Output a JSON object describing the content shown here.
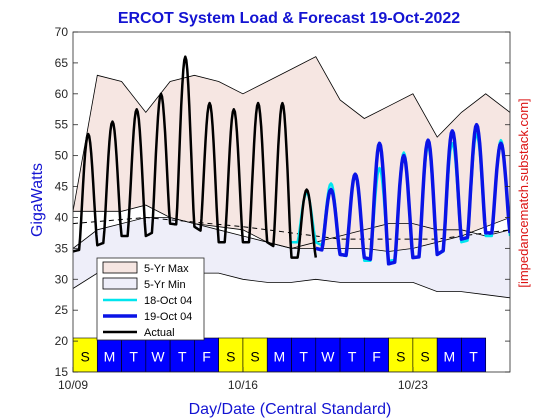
{
  "chart_data": {
    "type": "line",
    "title": "ERCOT System Load & Forecast 19-Oct-2022",
    "xlabel": "Day/Date (Central Standard)",
    "ylabel": "GigaWatts",
    "watermark": "[impedancematch.substack.com]",
    "xlim": [
      "2022-10-09 00:00",
      "2022-10-27 00:00"
    ],
    "ylim": [
      15,
      70
    ],
    "yticks": [
      15,
      20,
      25,
      30,
      35,
      40,
      45,
      50,
      55,
      60,
      65,
      70
    ],
    "xticks": [
      {
        "date": "2022-10-09",
        "label": "10/09"
      },
      {
        "date": "2022-10-16",
        "label": "10/16"
      },
      {
        "date": "2022-10-23",
        "label": "10/23"
      }
    ],
    "grid": false,
    "legend_position": "lower-left",
    "legend": [
      "5-Yr Max",
      "5-Yr Min",
      "18-Oct 04",
      "19-Oct 04",
      "Actual"
    ],
    "colors": {
      "title": "#1414d2",
      "max_band": "#f6e6e2",
      "min_band": "#eeeef9",
      "forecast_18": "#00e5ee",
      "forecast_19": "#0a14e6",
      "actual": "#000000",
      "watermark": "#dc1414",
      "weekend": "#ffff00",
      "weekday": "#0000ff"
    },
    "day_strip": {
      "start_date": "2022-10-09",
      "days": [
        "S",
        "M",
        "T",
        "W",
        "T",
        "F",
        "S",
        "S",
        "M",
        "T",
        "W",
        "T",
        "F",
        "S",
        "S",
        "M",
        "T"
      ],
      "weekend": [
        true,
        false,
        false,
        false,
        false,
        false,
        true,
        true,
        false,
        false,
        false,
        false,
        false,
        true,
        true,
        false,
        false
      ]
    },
    "series": [
      {
        "name": "5-Yr Max",
        "x": [
          "2022-10-09",
          "2022-10-10",
          "2022-10-11",
          "2022-10-12",
          "2022-10-13",
          "2022-10-14",
          "2022-10-15",
          "2022-10-16",
          "2022-10-17",
          "2022-10-18",
          "2022-10-19",
          "2022-10-20",
          "2022-10-21",
          "2022-10-22",
          "2022-10-23",
          "2022-10-24",
          "2022-10-25",
          "2022-10-26",
          "2022-10-27"
        ],
        "values": [
          41,
          63,
          62,
          57,
          62,
          63,
          62,
          60,
          62,
          64,
          66,
          59,
          56,
          58,
          60,
          53,
          57,
          60,
          57
        ]
      },
      {
        "name": "5-Yr Min",
        "x": [
          "2022-10-09",
          "2022-10-10",
          "2022-10-11",
          "2022-10-12",
          "2022-10-13",
          "2022-10-14",
          "2022-10-15",
          "2022-10-16",
          "2022-10-17",
          "2022-10-18",
          "2022-10-19",
          "2022-10-20",
          "2022-10-21",
          "2022-10-22",
          "2022-10-23",
          "2022-10-24",
          "2022-10-25",
          "2022-10-26",
          "2022-10-27"
        ],
        "values": [
          28.5,
          31,
          31.5,
          31,
          31,
          31,
          31,
          30,
          29.5,
          29.5,
          30,
          29.5,
          29.5,
          29.5,
          29.5,
          28,
          28,
          27.5,
          27
        ]
      },
      {
        "name": "5-Yr Max (lower trace)",
        "x": [
          "2022-10-09",
          "2022-10-10",
          "2022-10-11",
          "2022-10-12",
          "2022-10-13",
          "2022-10-14",
          "2022-10-15",
          "2022-10-16",
          "2022-10-17",
          "2022-10-18",
          "2022-10-19",
          "2022-10-20",
          "2022-10-21",
          "2022-10-22",
          "2022-10-23",
          "2022-10-24",
          "2022-10-25",
          "2022-10-26",
          "2022-10-27"
        ],
        "values": [
          41,
          41,
          41,
          42,
          40,
          39,
          38.5,
          38,
          36,
          35,
          35,
          35,
          35,
          34.5,
          35,
          36,
          37,
          38.5,
          40
        ]
      },
      {
        "name": "5-Yr Min (upper trace)",
        "x": [
          "2022-10-09",
          "2022-10-10",
          "2022-10-11",
          "2022-10-12",
          "2022-10-13",
          "2022-10-14",
          "2022-10-15",
          "2022-10-16",
          "2022-10-17",
          "2022-10-18",
          "2022-10-19",
          "2022-10-20",
          "2022-10-21",
          "2022-10-22",
          "2022-10-23",
          "2022-10-24",
          "2022-10-25",
          "2022-10-26",
          "2022-10-27"
        ],
        "values": [
          35,
          38,
          39,
          40,
          40,
          39,
          38,
          37,
          36,
          35,
          36,
          37,
          38,
          39,
          39,
          38,
          38,
          37,
          38
        ]
      },
      {
        "name": "Actual",
        "x": [
          "2022-10-09",
          "2022-10-10",
          "2022-10-11",
          "2022-10-12",
          "2022-10-13",
          "2022-10-14",
          "2022-10-15",
          "2022-10-16",
          "2022-10-17",
          "2022-10-18"
        ],
        "peaks": [
          53.5,
          55.5,
          57.5,
          60,
          66,
          58.5,
          57.5,
          58.5,
          58.5,
          44.5
        ],
        "troughs": [
          34.5,
          35.5,
          37,
          37,
          39,
          38.5,
          36,
          36,
          36,
          33.5
        ]
      },
      {
        "name": "18-Oct 04",
        "x": [
          "2022-10-18",
          "2022-10-19",
          "2022-10-20",
          "2022-10-21",
          "2022-10-22",
          "2022-10-23",
          "2022-10-24",
          "2022-10-25",
          "2022-10-26"
        ],
        "peaks": [
          44,
          45.5,
          47,
          48,
          50.5,
          51.5,
          52,
          53.5,
          52.5
        ],
        "troughs": [
          36,
          36,
          34,
          33,
          33,
          33.5,
          34,
          36,
          37
        ]
      },
      {
        "name": "19-Oct 04",
        "x": [
          "2022-10-19",
          "2022-10-20",
          "2022-10-21",
          "2022-10-22",
          "2022-10-23",
          "2022-10-24",
          "2022-10-25",
          "2022-10-26"
        ],
        "peaks": [
          44.5,
          47,
          52,
          50,
          52.5,
          54,
          55,
          52
        ],
        "troughs": [
          35,
          34,
          33.5,
          32.5,
          33.5,
          34,
          36.5,
          37.5
        ]
      },
      {
        "name": "Average (dashed)",
        "x": [
          "2022-10-09",
          "2022-10-12",
          "2022-10-16",
          "2022-10-20",
          "2022-10-24",
          "2022-10-27"
        ],
        "values": [
          39,
          40,
          38.5,
          36.5,
          36.5,
          38
        ]
      }
    ]
  }
}
